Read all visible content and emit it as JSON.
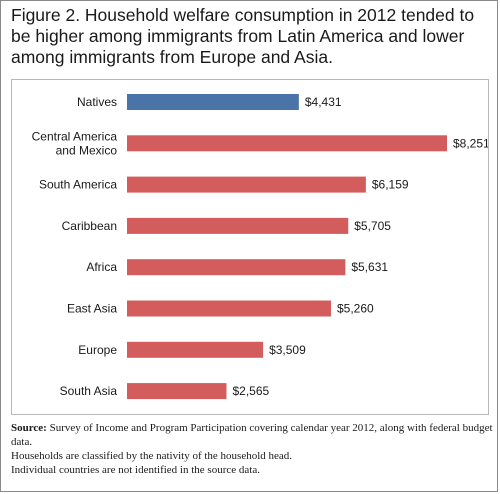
{
  "title": "Figure 2. Household welfare consumption in 2012 tended to be higher among immigrants from Latin America and lower among immigrants from Europe and Asia.",
  "notes": {
    "source_label": "Source:",
    "source_text": " Survey of Income and Program Participation covering calendar year 2012, along with federal budget data.",
    "line2": "Households are classified by the nativity of the household head.",
    "line3": "Individual countries are not identified in the source data."
  },
  "colors": {
    "natives": "#4a74a8",
    "immigrants": "#d35d5d"
  },
  "chart_data": {
    "type": "bar",
    "orientation": "horizontal",
    "title": "Figure 2. Household welfare consumption in 2012 tended to be higher among immigrants from Latin America and lower among immigrants from Europe and Asia.",
    "categories": [
      [
        "Natives"
      ],
      [
        "Central America",
        "and Mexico"
      ],
      [
        "South America"
      ],
      [
        "Caribbean"
      ],
      [
        "Africa"
      ],
      [
        "East Asia"
      ],
      [
        "Europe"
      ],
      [
        "South Asia"
      ]
    ],
    "values": [
      4431,
      8251,
      6159,
      5705,
      5631,
      5260,
      3509,
      2565
    ],
    "labels": [
      "$4,431",
      "$8,251",
      "$6,159",
      "$5,705",
      "$5,631",
      "$5,260",
      "$3,509",
      "$2,565"
    ],
    "xlim": [
      0,
      8251
    ],
    "grid": false,
    "legend": "none"
  }
}
